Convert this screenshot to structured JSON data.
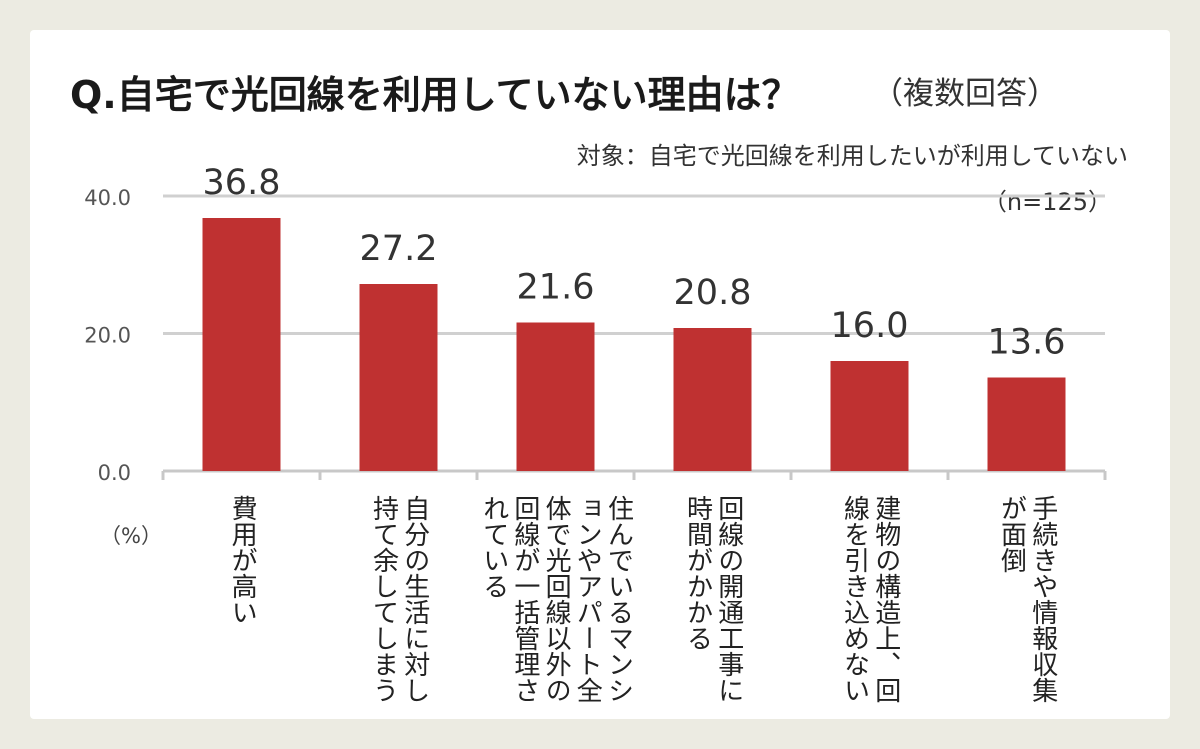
{
  "chart_data": {
    "type": "bar",
    "title": "Q.自宅で光回線を利用していない理由は？",
    "subtitle": "（複数回答）",
    "note": "対象：自宅で光回線を利用したいが利用していない",
    "sample": "（n=125）",
    "unit": "（%）",
    "categories": [
      "費用が高い",
      "自分の生活に対し持て余してしまう",
      "住んでいるマンションやアパート全体で光回線以外の回線が一括管理されている",
      "回線の開通工事に時間がかかる",
      "建物の構造上、回線を引き込めない",
      "手続きや情報収集が面倒"
    ],
    "values": [
      36.8,
      27.2,
      21.6,
      20.8,
      16.0,
      13.6
    ],
    "value_labels": [
      "36.8",
      "27.2",
      "21.6",
      "20.8",
      "16.0",
      "13.6"
    ],
    "ylim": [
      0,
      40
    ],
    "yticks": [
      "0.0",
      "20.0",
      "40.0"
    ],
    "ytick_values": [
      0,
      20,
      40
    ],
    "grid": true,
    "colors": {
      "bar": "#bf3131",
      "grid": "#d0d0d0",
      "background": "#ecebe2"
    }
  }
}
